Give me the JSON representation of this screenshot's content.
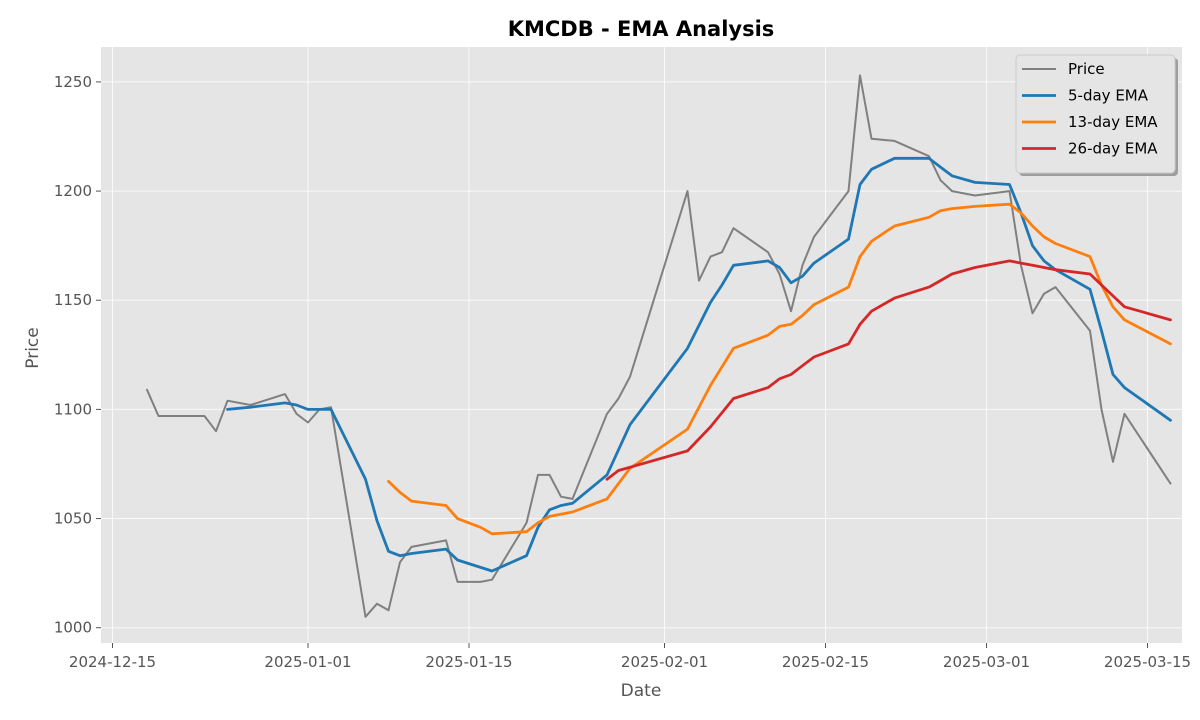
{
  "chart_data": {
    "type": "line",
    "title": "KMCDB - EMA Analysis",
    "xlabel": "Date",
    "ylabel": "Price",
    "x_axis_type": "date",
    "xlim": [
      "2024-12-14",
      "2025-03-18"
    ],
    "ylim": [
      993,
      1266
    ],
    "xticks": [
      {
        "date": "2024-12-15",
        "label": "2024-12-15"
      },
      {
        "date": "2025-01-01",
        "label": "2025-01-01"
      },
      {
        "date": "2025-01-15",
        "label": "2025-01-15"
      },
      {
        "date": "2025-02-01",
        "label": "2025-02-01"
      },
      {
        "date": "2025-02-15",
        "label": "2025-02-15"
      },
      {
        "date": "2025-03-01",
        "label": "2025-03-01"
      },
      {
        "date": "2025-03-15",
        "label": "2025-03-15"
      }
    ],
    "yticks": [
      1000,
      1050,
      1100,
      1150,
      1200,
      1250
    ],
    "grid": true,
    "legend_position": "top-right",
    "series": [
      {
        "name": "Price",
        "color": "#808080",
        "points": [
          [
            "2024-12-18",
            1109
          ],
          [
            "2024-12-19",
            1097
          ],
          [
            "2024-12-23",
            1097
          ],
          [
            "2024-12-24",
            1090
          ],
          [
            "2024-12-25",
            1104
          ],
          [
            "2024-12-27",
            1102
          ],
          [
            "2024-12-30",
            1107
          ],
          [
            "2024-12-31",
            1098
          ],
          [
            "2025-01-01",
            1094
          ],
          [
            "2025-01-02",
            1100
          ],
          [
            "2025-01-03",
            1101
          ],
          [
            "2025-01-06",
            1005
          ],
          [
            "2025-01-07",
            1011
          ],
          [
            "2025-01-08",
            1008
          ],
          [
            "2025-01-09",
            1030
          ],
          [
            "2025-01-10",
            1037
          ],
          [
            "2025-01-13",
            1040
          ],
          [
            "2025-01-14",
            1021
          ],
          [
            "2025-01-15",
            1021
          ],
          [
            "2025-01-16",
            1021
          ],
          [
            "2025-01-17",
            1022
          ],
          [
            "2025-01-20",
            1048
          ],
          [
            "2025-01-21",
            1070
          ],
          [
            "2025-01-22",
            1070
          ],
          [
            "2025-01-23",
            1060
          ],
          [
            "2025-01-24",
            1059
          ],
          [
            "2025-01-27",
            1098
          ],
          [
            "2025-01-28",
            1105
          ],
          [
            "2025-01-29",
            1115
          ],
          [
            "2025-02-03",
            1200
          ],
          [
            "2025-02-04",
            1159
          ],
          [
            "2025-02-05",
            1170
          ],
          [
            "2025-02-06",
            1172
          ],
          [
            "2025-02-07",
            1183
          ],
          [
            "2025-02-10",
            1172
          ],
          [
            "2025-02-11",
            1162
          ],
          [
            "2025-02-12",
            1145
          ],
          [
            "2025-02-13",
            1166
          ],
          [
            "2025-02-14",
            1179
          ],
          [
            "2025-02-17",
            1200
          ],
          [
            "2025-02-18",
            1253
          ],
          [
            "2025-02-19",
            1224
          ],
          [
            "2025-02-21",
            1223
          ],
          [
            "2025-02-24",
            1216
          ],
          [
            "2025-02-25",
            1205
          ],
          [
            "2025-02-26",
            1200
          ],
          [
            "2025-02-28",
            1198
          ],
          [
            "2025-03-03",
            1200
          ],
          [
            "2025-03-04",
            1166
          ],
          [
            "2025-03-05",
            1144
          ],
          [
            "2025-03-06",
            1153
          ],
          [
            "2025-03-07",
            1156
          ],
          [
            "2025-03-10",
            1136
          ],
          [
            "2025-03-11",
            1100
          ],
          [
            "2025-03-12",
            1076
          ],
          [
            "2025-03-13",
            1098
          ],
          [
            "2025-03-17",
            1066
          ]
        ]
      },
      {
        "name": "5-day EMA",
        "color": "#1f77b4",
        "points": [
          [
            "2024-12-25",
            1100
          ],
          [
            "2024-12-27",
            1101
          ],
          [
            "2024-12-30",
            1103
          ],
          [
            "2024-12-31",
            1102
          ],
          [
            "2025-01-01",
            1100
          ],
          [
            "2025-01-03",
            1100
          ],
          [
            "2025-01-06",
            1068
          ],
          [
            "2025-01-07",
            1049
          ],
          [
            "2025-01-08",
            1035
          ],
          [
            "2025-01-09",
            1033
          ],
          [
            "2025-01-10",
            1034
          ],
          [
            "2025-01-13",
            1036
          ],
          [
            "2025-01-14",
            1031
          ],
          [
            "2025-01-17",
            1026
          ],
          [
            "2025-01-20",
            1033
          ],
          [
            "2025-01-21",
            1046
          ],
          [
            "2025-01-22",
            1054
          ],
          [
            "2025-01-23",
            1056
          ],
          [
            "2025-01-24",
            1057
          ],
          [
            "2025-01-27",
            1070
          ],
          [
            "2025-01-29",
            1093
          ],
          [
            "2025-02-03",
            1128
          ],
          [
            "2025-02-05",
            1149
          ],
          [
            "2025-02-06",
            1157
          ],
          [
            "2025-02-07",
            1166
          ],
          [
            "2025-02-10",
            1168
          ],
          [
            "2025-02-11",
            1165
          ],
          [
            "2025-02-12",
            1158
          ],
          [
            "2025-02-13",
            1161
          ],
          [
            "2025-02-14",
            1167
          ],
          [
            "2025-02-17",
            1178
          ],
          [
            "2025-02-18",
            1203
          ],
          [
            "2025-02-19",
            1210
          ],
          [
            "2025-02-21",
            1215
          ],
          [
            "2025-02-24",
            1215
          ],
          [
            "2025-02-25",
            1211
          ],
          [
            "2025-02-26",
            1207
          ],
          [
            "2025-02-28",
            1204
          ],
          [
            "2025-03-03",
            1203
          ],
          [
            "2025-03-04",
            1190
          ],
          [
            "2025-03-05",
            1175
          ],
          [
            "2025-03-06",
            1168
          ],
          [
            "2025-03-07",
            1164
          ],
          [
            "2025-03-10",
            1155
          ],
          [
            "2025-03-11",
            1136
          ],
          [
            "2025-03-12",
            1116
          ],
          [
            "2025-03-13",
            1110
          ],
          [
            "2025-03-17",
            1095
          ]
        ]
      },
      {
        "name": "13-day EMA",
        "color": "#ff7f0e",
        "points": [
          [
            "2025-01-08",
            1067
          ],
          [
            "2025-01-09",
            1062
          ],
          [
            "2025-01-10",
            1058
          ],
          [
            "2025-01-13",
            1056
          ],
          [
            "2025-01-14",
            1050
          ],
          [
            "2025-01-16",
            1046
          ],
          [
            "2025-01-17",
            1043
          ],
          [
            "2025-01-20",
            1044
          ],
          [
            "2025-01-21",
            1048
          ],
          [
            "2025-01-22",
            1051
          ],
          [
            "2025-01-24",
            1053
          ],
          [
            "2025-01-27",
            1059
          ],
          [
            "2025-01-28",
            1066
          ],
          [
            "2025-01-29",
            1073
          ],
          [
            "2025-02-03",
            1091
          ],
          [
            "2025-02-05",
            1111
          ],
          [
            "2025-02-07",
            1128
          ],
          [
            "2025-02-10",
            1134
          ],
          [
            "2025-02-11",
            1138
          ],
          [
            "2025-02-12",
            1139
          ],
          [
            "2025-02-13",
            1143
          ],
          [
            "2025-02-14",
            1148
          ],
          [
            "2025-02-17",
            1156
          ],
          [
            "2025-02-18",
            1170
          ],
          [
            "2025-02-19",
            1177
          ],
          [
            "2025-02-21",
            1184
          ],
          [
            "2025-02-24",
            1188
          ],
          [
            "2025-02-25",
            1191
          ],
          [
            "2025-02-26",
            1192
          ],
          [
            "2025-02-28",
            1193
          ],
          [
            "2025-03-03",
            1194
          ],
          [
            "2025-03-04",
            1190
          ],
          [
            "2025-03-05",
            1184
          ],
          [
            "2025-03-06",
            1179
          ],
          [
            "2025-03-07",
            1176
          ],
          [
            "2025-03-10",
            1170
          ],
          [
            "2025-03-11",
            1157
          ],
          [
            "2025-03-12",
            1147
          ],
          [
            "2025-03-13",
            1141
          ],
          [
            "2025-03-17",
            1130
          ]
        ]
      },
      {
        "name": "26-day EMA",
        "color": "#d62728",
        "points": [
          [
            "2025-01-27",
            1068
          ],
          [
            "2025-01-28",
            1072
          ],
          [
            "2025-02-03",
            1081
          ],
          [
            "2025-02-05",
            1092
          ],
          [
            "2025-02-07",
            1105
          ],
          [
            "2025-02-10",
            1110
          ],
          [
            "2025-02-11",
            1114
          ],
          [
            "2025-02-12",
            1116
          ],
          [
            "2025-02-13",
            1120
          ],
          [
            "2025-02-14",
            1124
          ],
          [
            "2025-02-17",
            1130
          ],
          [
            "2025-02-18",
            1139
          ],
          [
            "2025-02-19",
            1145
          ],
          [
            "2025-02-21",
            1151
          ],
          [
            "2025-02-24",
            1156
          ],
          [
            "2025-02-25",
            1159
          ],
          [
            "2025-02-26",
            1162
          ],
          [
            "2025-02-28",
            1165
          ],
          [
            "2025-03-03",
            1168
          ],
          [
            "2025-03-04",
            1167
          ],
          [
            "2025-03-05",
            1166
          ],
          [
            "2025-03-07",
            1164
          ],
          [
            "2025-03-10",
            1162
          ],
          [
            "2025-03-11",
            1157
          ],
          [
            "2025-03-12",
            1152
          ],
          [
            "2025-03-13",
            1147
          ],
          [
            "2025-03-17",
            1141
          ]
        ]
      }
    ]
  }
}
